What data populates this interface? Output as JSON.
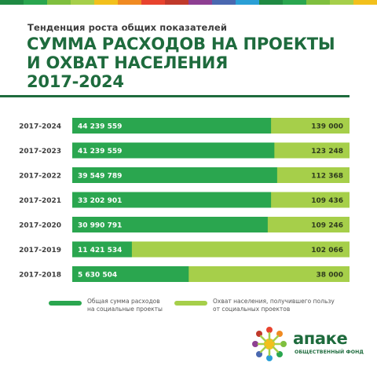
{
  "header": {
    "subtitle": "Тенденция роста общих показателей",
    "title_line1": "СУММА РАСХОДОВ НА ПРОЕКТЫ",
    "title_line2": "И ОХВАТ НАСЕЛЕНИЯ",
    "title_line3": "2017-2024"
  },
  "colors": {
    "title_green": "#1e6b3d",
    "expenses_green": "#2aa64f",
    "coverage_green": "#a6cf4a",
    "strip": [
      "#1f8a43",
      "#2aa64f",
      "#7fbf3f",
      "#a6cf4a",
      "#f2c01c",
      "#f08a22",
      "#e8432e",
      "#c0392b",
      "#8e3f92",
      "#4a68b0",
      "#2a9fd6",
      "#1f8a43",
      "#2aa64f",
      "#7fbf3f",
      "#a6cf4a",
      "#f2c01c"
    ]
  },
  "chart_data": {
    "type": "bar",
    "orientation": "horizontal",
    "stacked": true,
    "categories": [
      "2017-2024",
      "2017-2023",
      "2017-2022",
      "2017-2021",
      "2017-2020",
      "2017-2019",
      "2017-2018"
    ],
    "series": [
      {
        "name": "Общая сумма расходов на социальные проекты",
        "values": [
          44239559,
          41239559,
          39549789,
          33202901,
          30990791,
          11421534,
          5630504
        ],
        "labels": [
          "44 239 559",
          "41 239 559",
          "39 549 789",
          "33 202 901",
          "30 990 791",
          "11 421 534",
          "5 630 504"
        ],
        "bar_fraction": [
          0.717,
          0.729,
          0.739,
          0.717,
          0.705,
          0.215,
          0.42
        ]
      },
      {
        "name": "Охват населения, получившего пользу от социальных проектов",
        "values": [
          139000,
          123248,
          112368,
          109436,
          109246,
          102066,
          38000
        ],
        "labels": [
          "139 000",
          "123 248",
          "112 368",
          "109 436",
          "109 246",
          "102 066",
          "38 000"
        ]
      }
    ],
    "legend_position": "bottom",
    "grid": false
  },
  "legend": {
    "item1_line1": "Общая сумма расходов",
    "item1_line2": "на социальные проекты",
    "item2_line1": "Охват населения, получившего пользу",
    "item2_line2": "от социальных проектов"
  },
  "logo": {
    "name": "апаке",
    "sub": "ОБЩЕСТВЕННЫЙ ФОНД"
  }
}
